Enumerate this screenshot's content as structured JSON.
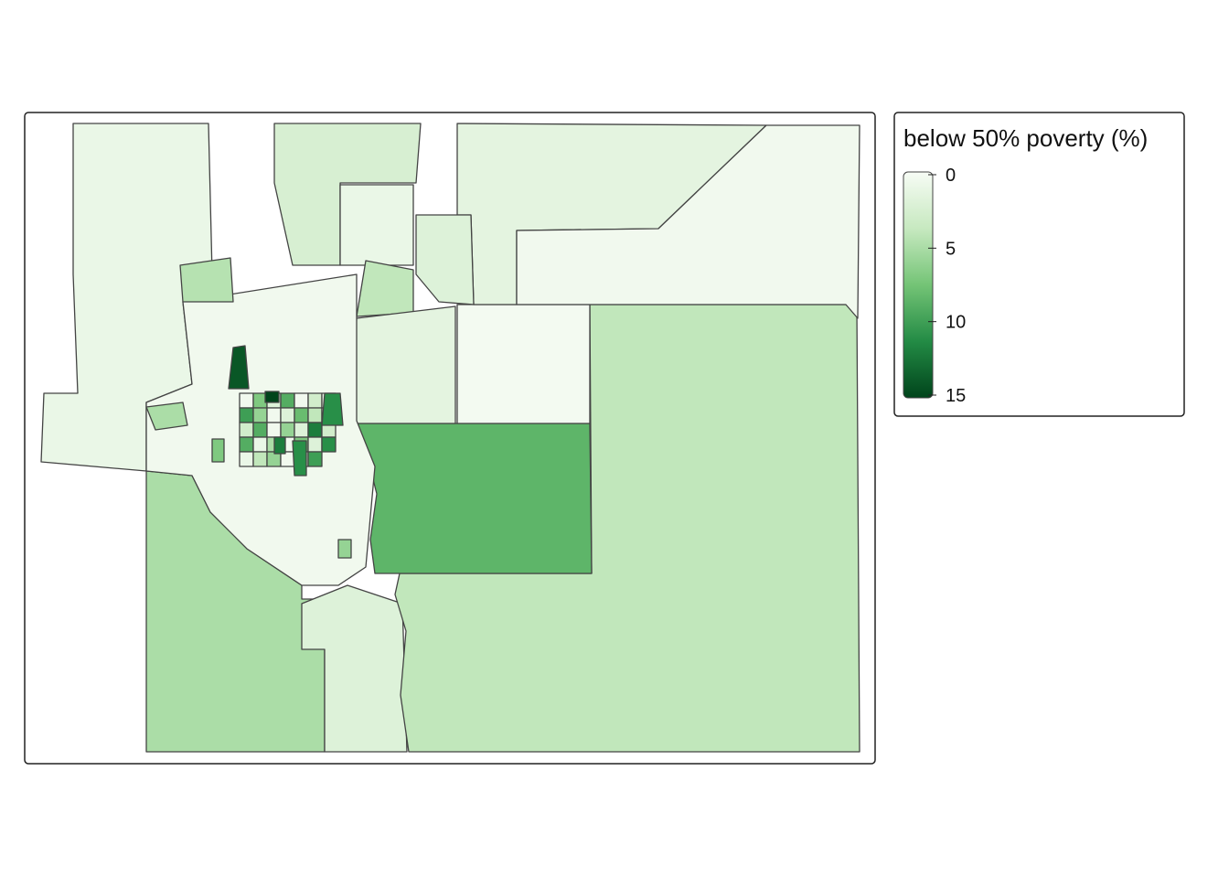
{
  "legend": {
    "title": "below 50% poverty (%)",
    "range": [
      0,
      15
    ],
    "ticks": [
      0,
      5,
      10,
      15
    ],
    "colors": [
      "#f7fcf5",
      "#c7e9c0",
      "#74c476",
      "#238b45",
      "#00441b"
    ]
  },
  "tracts": {
    "values": [
      1,
      5,
      2,
      4,
      8.5,
      0.3,
      1.5,
      0.5,
      2,
      2.5,
      1,
      4,
      1.5,
      0.5,
      5,
      4.5,
      0.5,
      7,
      2,
      9,
      0.5,
      3,
      1,
      10,
      6,
      0.5,
      2,
      8,
      4,
      1,
      3,
      9,
      0.5,
      6,
      2,
      12,
      3,
      9,
      1,
      5,
      0.5,
      7,
      2,
      11,
      1,
      4,
      6,
      0.5,
      3,
      10,
      14,
      15,
      11,
      12,
      11,
      7,
      6
    ]
  }
}
